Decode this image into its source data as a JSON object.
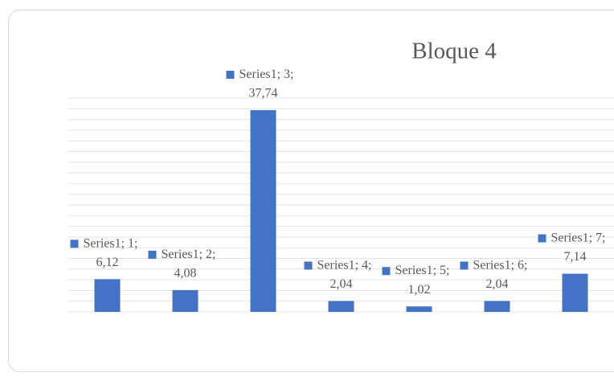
{
  "chart_data": {
    "type": "bar",
    "title": "Bloque 4",
    "categories": [
      "1",
      "2",
      "3",
      "4",
      "5",
      "6",
      "7"
    ],
    "series": [
      {
        "name": "Series1",
        "color": "#4472c4",
        "values": [
          6.12,
          4.08,
          37.74,
          2.04,
          1.02,
          2.04,
          7.14
        ]
      }
    ],
    "value_labels": [
      "6,12",
      "4,08",
      "37,74",
      "2,04",
      "1,02",
      "2,04",
      "7,14"
    ],
    "label_separator": "; ",
    "ylim": [
      0,
      40
    ],
    "yticks": [
      0,
      2,
      4,
      6,
      8,
      10,
      12,
      14,
      16,
      18,
      20,
      22,
      24,
      26,
      28,
      30,
      32,
      34,
      36,
      38,
      40
    ],
    "grid": true
  }
}
